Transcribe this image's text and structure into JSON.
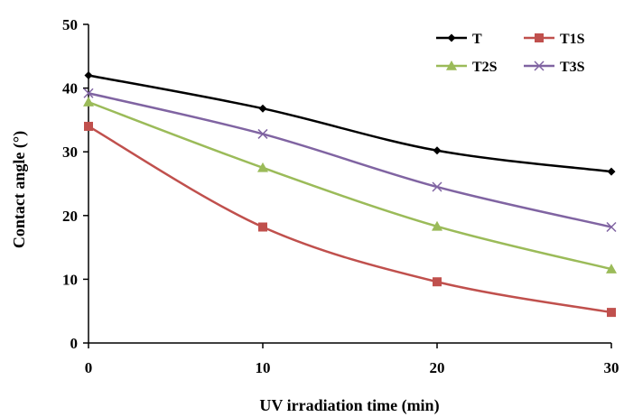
{
  "chart_data": {
    "type": "line",
    "title": "",
    "xlabel": "UV irradiation time (min)",
    "ylabel": "Contact angle (°)",
    "x": [
      0,
      10,
      20,
      30
    ],
    "xlim": [
      0,
      30
    ],
    "ylim": [
      0,
      50
    ],
    "xticks": [
      "0",
      "10",
      "20",
      "30"
    ],
    "yticks": [
      "0",
      "10",
      "20",
      "30",
      "40",
      "50"
    ],
    "grid": false,
    "legend_position": "top-right",
    "series": [
      {
        "name": "T",
        "values": [
          42.0,
          36.8,
          30.2,
          26.9
        ],
        "color": "#000000",
        "marker": "diamond"
      },
      {
        "name": "T1S",
        "values": [
          34.0,
          18.2,
          9.6,
          4.8
        ],
        "color": "#c0504d",
        "marker": "square"
      },
      {
        "name": "T2S",
        "values": [
          37.8,
          27.5,
          18.3,
          11.6
        ],
        "color": "#9bbb59",
        "marker": "triangle"
      },
      {
        "name": "T3S",
        "values": [
          39.2,
          32.8,
          24.5,
          18.2
        ],
        "color": "#8064a2",
        "marker": "x"
      }
    ]
  }
}
